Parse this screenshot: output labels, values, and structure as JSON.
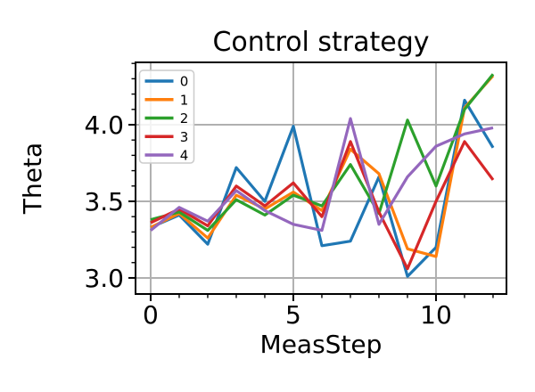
{
  "figure": {
    "title": "Control strategy",
    "xlabel": "MeasStep",
    "ylabel": "Theta"
  },
  "chart_data": {
    "type": "line",
    "title": "Control strategy",
    "xlabel": "MeasStep",
    "ylabel": "Theta",
    "grid": true,
    "legend_position": "upper left",
    "x": [
      0,
      1,
      2,
      3,
      4,
      5,
      6,
      7,
      8,
      9,
      10,
      11,
      12
    ],
    "series": [
      {
        "name": "0",
        "color": "#1f77b4",
        "values": [
          3.33,
          3.41,
          3.22,
          3.72,
          3.5,
          3.99,
          3.21,
          3.24,
          3.66,
          3.01,
          3.2,
          4.16,
          3.85
        ]
      },
      {
        "name": "1",
        "color": "#ff7f0e",
        "values": [
          3.33,
          3.42,
          3.26,
          3.54,
          3.45,
          3.56,
          3.44,
          3.84,
          3.68,
          3.19,
          3.14,
          4.11,
          4.32
        ]
      },
      {
        "name": "2",
        "color": "#2ca02c",
        "values": [
          3.38,
          3.43,
          3.31,
          3.51,
          3.41,
          3.54,
          3.47,
          3.74,
          3.42,
          4.03,
          3.6,
          4.1,
          4.33
        ]
      },
      {
        "name": "3",
        "color": "#d62728",
        "values": [
          3.36,
          3.45,
          3.34,
          3.6,
          3.47,
          3.62,
          3.4,
          3.89,
          3.43,
          3.06,
          3.5,
          3.89,
          3.64
        ]
      },
      {
        "name": "4",
        "color": "#9467bd",
        "values": [
          3.31,
          3.46,
          3.37,
          3.57,
          3.44,
          3.35,
          3.31,
          4.04,
          3.35,
          3.66,
          3.86,
          3.94,
          3.98
        ]
      }
    ],
    "xlim": [
      -0.53,
      12.47
    ],
    "ylim": [
      2.895,
      4.407
    ],
    "xticks": [
      0,
      5,
      10
    ],
    "xtick_labels": [
      "0",
      "5",
      "10"
    ],
    "minor_xticks": [
      1,
      2,
      3,
      4,
      6,
      7,
      8,
      9,
      11,
      12
    ],
    "yticks": [
      3.0,
      3.5,
      4.0
    ],
    "ytick_labels": [
      "3.0",
      "3.5",
      "4.0"
    ],
    "minor_yticks": [
      3.1,
      3.2,
      3.3,
      3.4,
      3.6,
      3.7,
      3.8,
      3.9,
      4.1,
      4.2,
      4.3,
      4.4
    ],
    "grid_color": "#b0b0b0",
    "spine_color": "#000000",
    "legend_labels": [
      "0",
      "1",
      "2",
      "3",
      "4"
    ]
  }
}
